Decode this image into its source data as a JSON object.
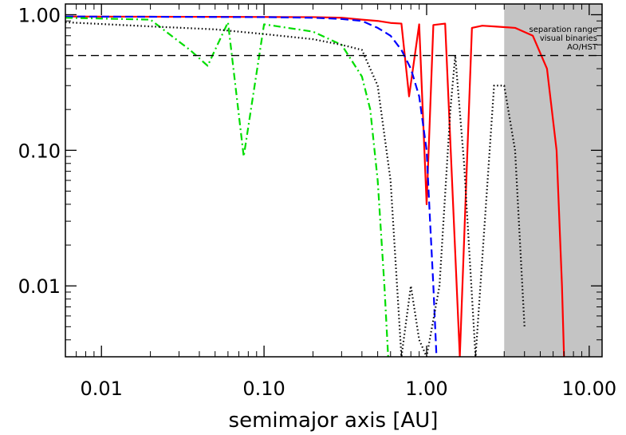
{
  "chart_data": {
    "type": "line",
    "xlabel": "semimajor axis [AU]",
    "ylabel": "",
    "xscale": "log",
    "yscale": "log",
    "xlim": [
      0.006,
      12
    ],
    "ylim": [
      0.003,
      1.2
    ],
    "x_ticks": [
      0.01,
      0.1,
      1,
      10
    ],
    "x_tick_labels": [
      "0.01",
      "0.10",
      "1.00",
      "10.00"
    ],
    "y_ticks": [
      0.01,
      0.1,
      1
    ],
    "y_tick_labels": [
      "0.01",
      "0.10",
      "1.00"
    ],
    "threshold_line": {
      "y": 0.5,
      "style": "dashed",
      "color": "#000000"
    },
    "shaded_region": {
      "x_range": [
        3.0,
        12
      ],
      "color": "#c4c4c4",
      "annotation": [
        "separation range",
        "visual binaries",
        "AO/HST"
      ]
    },
    "series": [
      {
        "color": "#ff0000",
        "style": "solid",
        "points": [
          [
            0.006,
            0.97
          ],
          [
            0.05,
            0.965
          ],
          [
            0.2,
            0.96
          ],
          [
            0.3,
            0.95
          ],
          [
            0.4,
            0.92
          ],
          [
            0.5,
            0.9
          ],
          [
            0.6,
            0.87
          ],
          [
            0.7,
            0.86
          ],
          [
            0.78,
            0.25
          ],
          [
            0.9,
            0.85
          ],
          [
            1.0,
            0.04
          ],
          [
            1.1,
            0.84
          ],
          [
            1.3,
            0.86
          ],
          [
            1.6,
            0.003
          ],
          [
            1.9,
            0.8
          ],
          [
            2.2,
            0.83
          ],
          [
            2.6,
            0.82
          ],
          [
            3.5,
            0.8
          ],
          [
            4.5,
            0.7
          ],
          [
            5.5,
            0.4
          ],
          [
            6.3,
            0.1
          ],
          [
            6.8,
            0.01
          ],
          [
            7.0,
            0.003
          ]
        ]
      },
      {
        "color": "#0000ff",
        "style": "dashed",
        "points": [
          [
            0.006,
            0.97
          ],
          [
            0.1,
            0.96
          ],
          [
            0.2,
            0.95
          ],
          [
            0.3,
            0.93
          ],
          [
            0.4,
            0.9
          ],
          [
            0.5,
            0.8
          ],
          [
            0.6,
            0.7
          ],
          [
            0.7,
            0.55
          ],
          [
            0.8,
            0.4
          ],
          [
            0.9,
            0.25
          ],
          [
            1.0,
            0.1
          ],
          [
            1.05,
            0.03
          ],
          [
            1.1,
            0.01
          ],
          [
            1.15,
            0.003
          ]
        ]
      },
      {
        "color": "#00dd00",
        "style": "dash-dot",
        "points": [
          [
            0.006,
            0.95
          ],
          [
            0.02,
            0.92
          ],
          [
            0.035,
            0.55
          ],
          [
            0.045,
            0.42
          ],
          [
            0.06,
            0.88
          ],
          [
            0.075,
            0.09
          ],
          [
            0.1,
            0.85
          ],
          [
            0.2,
            0.75
          ],
          [
            0.3,
            0.6
          ],
          [
            0.4,
            0.35
          ],
          [
            0.45,
            0.2
          ],
          [
            0.5,
            0.06
          ],
          [
            0.55,
            0.01
          ],
          [
            0.58,
            0.003
          ]
        ]
      },
      {
        "color": "#000000",
        "style": "dotted",
        "points": [
          [
            0.006,
            0.88
          ],
          [
            0.02,
            0.82
          ],
          [
            0.05,
            0.78
          ],
          [
            0.1,
            0.72
          ],
          [
            0.2,
            0.66
          ],
          [
            0.3,
            0.6
          ],
          [
            0.4,
            0.55
          ],
          [
            0.5,
            0.3
          ],
          [
            0.6,
            0.06
          ],
          [
            0.7,
            0.003
          ],
          [
            0.8,
            0.01
          ],
          [
            0.9,
            0.004
          ],
          [
            1.0,
            0.003
          ],
          [
            1.2,
            0.01
          ],
          [
            1.4,
            0.2
          ],
          [
            1.5,
            0.5
          ],
          [
            1.7,
            0.08
          ],
          [
            2.0,
            0.003
          ],
          [
            2.6,
            0.3
          ],
          [
            3.0,
            0.3
          ],
          [
            3.5,
            0.1
          ],
          [
            4.0,
            0.005
          ]
        ]
      }
    ]
  }
}
